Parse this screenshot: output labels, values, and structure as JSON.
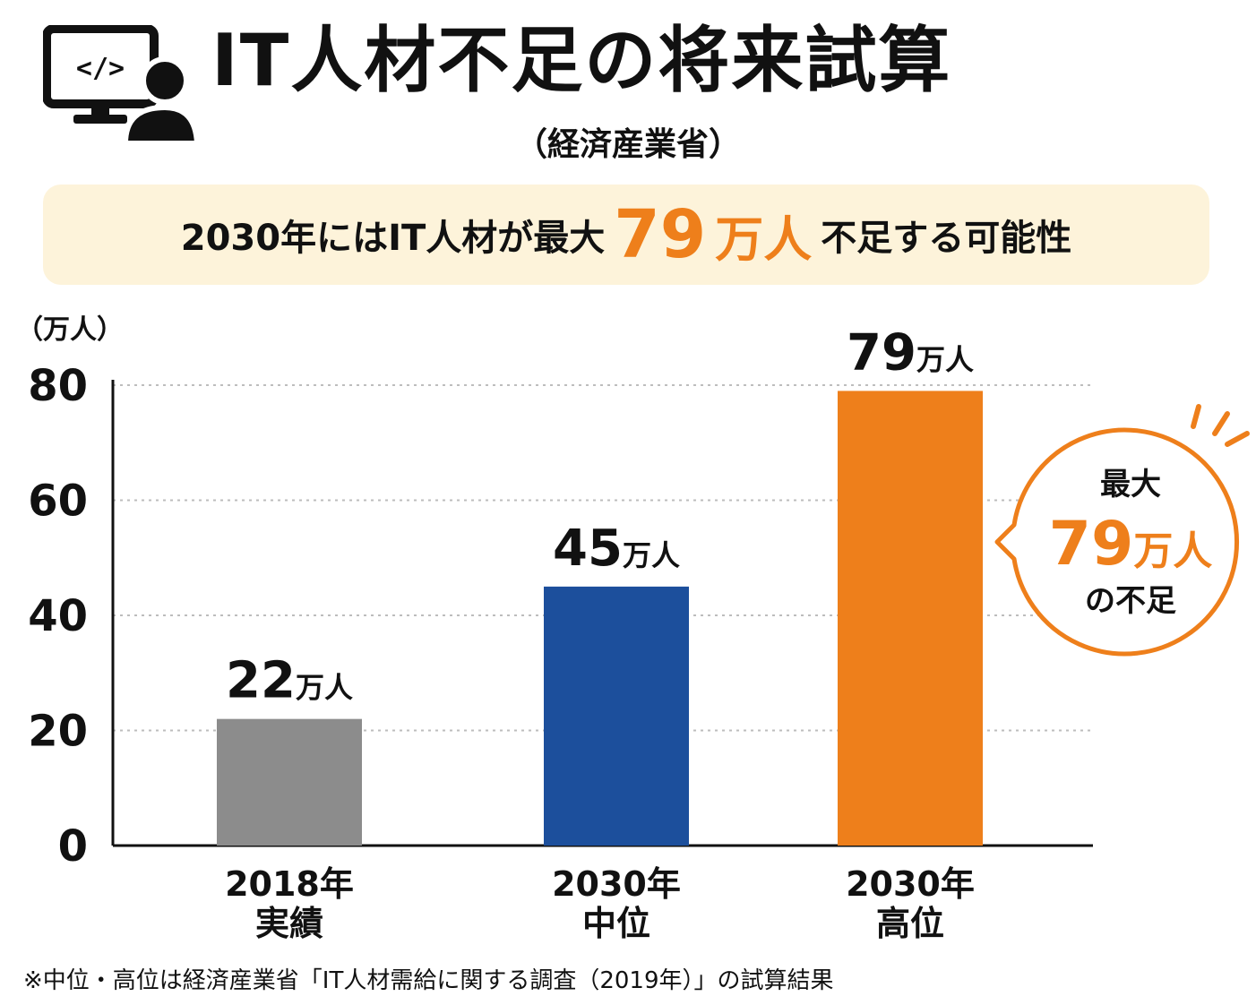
{
  "header": {
    "title": "IT人材不足の将来試算",
    "source": "（経済産業省）",
    "icon": "computer-user-icon"
  },
  "banner": {
    "prefix": "2030年にはIT人材が最大",
    "highlight": "79",
    "highlight_unit": "万人",
    "suffix": "不足する可能性"
  },
  "callout": {
    "line1": "最大",
    "value": "79",
    "unit": "万人",
    "line3": "の不足"
  },
  "footnote": "※中位・高位は経済産業省「IT人材需給に関する調査（2019年）」の試算結果",
  "colors": {
    "accent": "#ee7f1b",
    "bar_gray": "#8c8c8c",
    "bar_blue": "#1c4f9c",
    "bar_orange": "#ee7f1b",
    "banner_bg": "#fdf3da"
  },
  "chart_data": {
    "type": "bar",
    "unit_label": "（万人）",
    "categories": [
      {
        "year": "2018年",
        "label": "実績"
      },
      {
        "year": "2030年",
        "label": "中位"
      },
      {
        "year": "2030年",
        "label": "高位"
      }
    ],
    "values": [
      22,
      45,
      79
    ],
    "value_suffix": "万人",
    "bar_colors": [
      "#8c8c8c",
      "#1c4f9c",
      "#ee7f1b"
    ],
    "ylim": [
      0,
      80
    ],
    "yticks": [
      0,
      20,
      40,
      60,
      80
    ],
    "grid": true,
    "grid_style": "dotted"
  }
}
